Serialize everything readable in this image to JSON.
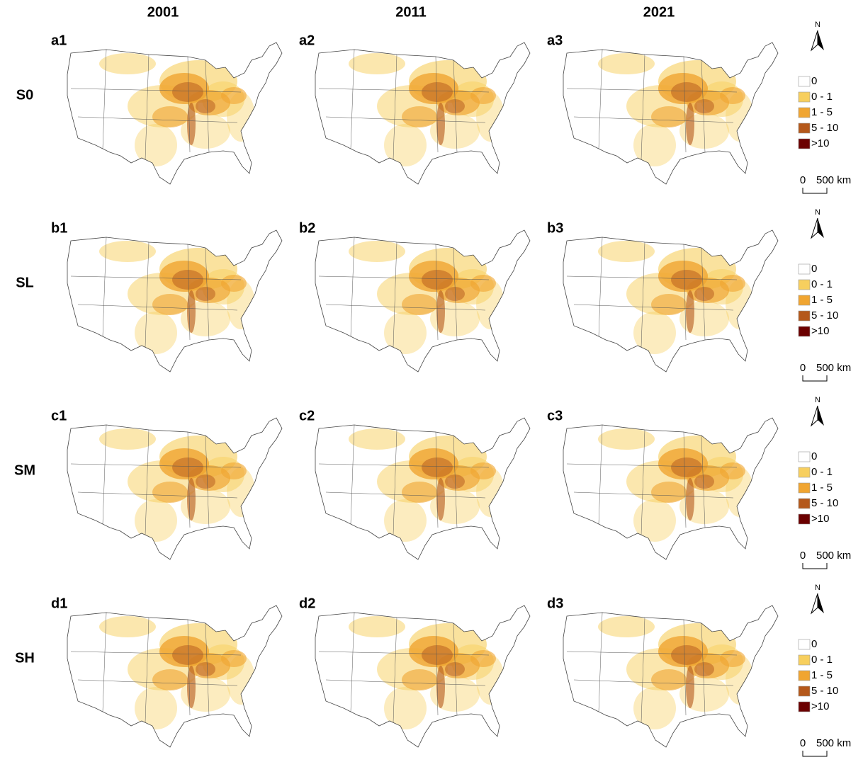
{
  "columns": [
    "2001",
    "2011",
    "2021"
  ],
  "rows": [
    {
      "label": "S0",
      "panels": [
        "a1",
        "a2",
        "a3"
      ]
    },
    {
      "label": "SL",
      "panels": [
        "b1",
        "b2",
        "b3"
      ]
    },
    {
      "label": "SM",
      "panels": [
        "c1",
        "c2",
        "c3"
      ]
    },
    {
      "label": "SH",
      "panels": [
        "d1",
        "d2",
        "d3"
      ]
    }
  ],
  "legend": {
    "items": [
      {
        "label": "0",
        "color": "#ffffff"
      },
      {
        "label": "0 - 1",
        "color": "#f7cf5e"
      },
      {
        "label": "1 - 5",
        "color": "#f0a531"
      },
      {
        "label": "5 - 10",
        "color": "#b4581b"
      },
      {
        "label": ">10",
        "color": "#6b0000"
      }
    ]
  },
  "north_arrow": "N",
  "scale_bar": {
    "start": "0",
    "end": "500 km"
  }
}
